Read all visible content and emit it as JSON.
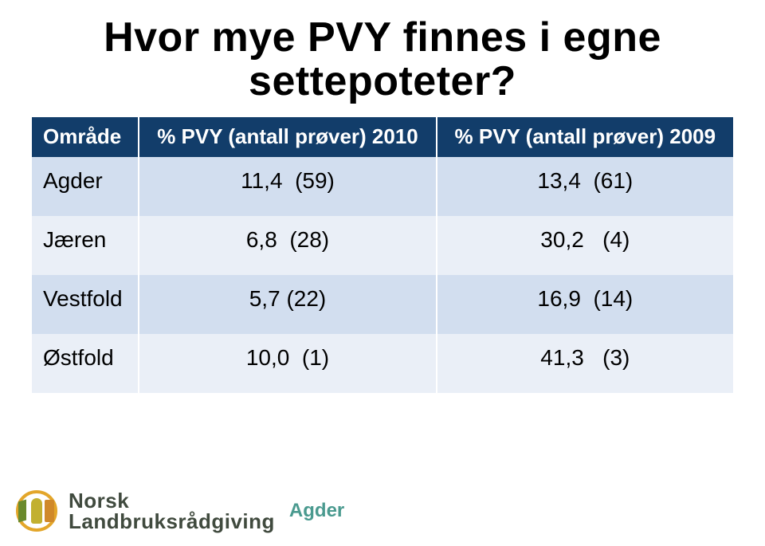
{
  "title": "Hvor mye PVY finnes i egne settepoteter?",
  "table": {
    "header_bg": "#123d6a",
    "header_fg": "#ffffff",
    "row_light_bg": "#d2deef",
    "row_dark_bg": "#eaeff7",
    "columns": [
      "Område",
      "% PVY (antall prøver) 2010",
      "% PVY (antall prøver) 2009"
    ],
    "rows": [
      {
        "region": "Agder",
        "v2010": "11,4  (59)",
        "v2009": "13,4  (61)"
      },
      {
        "region": "Jæren",
        "v2010": "6,8  (28)",
        "v2009": "30,2   (4)"
      },
      {
        "region": "Vestfold",
        "v2010": "5,7 (22)",
        "v2009": "16,9  (14)"
      },
      {
        "region": "Østfold",
        "v2010": "10,0  (1)",
        "v2009": "41,3   (3)"
      }
    ]
  },
  "footer": {
    "brand_line1": "Norsk",
    "brand_line2": "Landbruksrådgiving",
    "brand_sub": "Agder",
    "badge_ring_color": "#e3a62a",
    "brand_text_color": "#404a3e",
    "brand_sub_color": "#4a9a8f"
  }
}
